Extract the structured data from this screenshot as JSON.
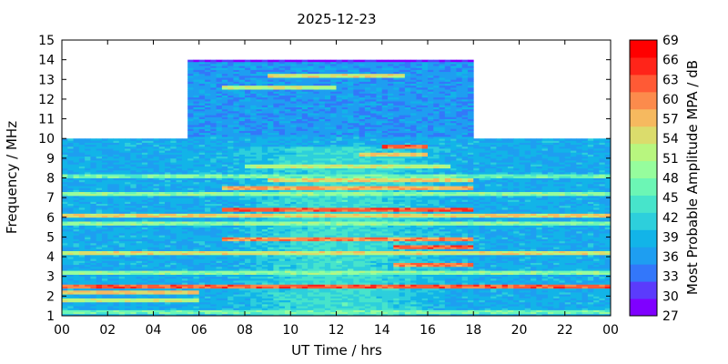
{
  "chart_data": {
    "type": "heatmap",
    "title": "2025-12-23",
    "xlabel": "UT Time / hrs",
    "ylabel": "Frequency / MHz",
    "xlim": [
      0,
      24
    ],
    "ylim": [
      1,
      15
    ],
    "x_ticks": [
      "00",
      "02",
      "04",
      "06",
      "08",
      "10",
      "12",
      "14",
      "16",
      "18",
      "20",
      "22",
      "00"
    ],
    "y_ticks": [
      "1",
      "2",
      "3",
      "4",
      "5",
      "6",
      "7",
      "8",
      "9",
      "10",
      "11",
      "12",
      "13",
      "14",
      "15"
    ],
    "colorbar": {
      "label": "Most Probable Amplitude MPA / dB",
      "min": 27,
      "max": 69,
      "ticks": [
        "27",
        "30",
        "33",
        "36",
        "39",
        "42",
        "45",
        "48",
        "51",
        "54",
        "57",
        "60",
        "63",
        "66",
        "69"
      ],
      "colors": [
        "#7f00ff",
        "#5b3bfc",
        "#3377fa",
        "#1e9ef1",
        "#12b4e8",
        "#2dcfdc",
        "#47e4cb",
        "#6cf6b5",
        "#96fd9d",
        "#b8f67f",
        "#dbdc6c",
        "#f6b95f",
        "#fc8b4c",
        "#ff5a35",
        "#ff2419",
        "#ff0000"
      ]
    },
    "coverage": [
      {
        "start_hr": 0.0,
        "end_hr": 5.5,
        "max_mhz": 10.0
      },
      {
        "start_hr": 5.5,
        "end_hr": 18.0,
        "max_mhz": 14.0
      },
      {
        "start_hr": 18.0,
        "end_hr": 24.0,
        "max_mhz": 10.0
      }
    ],
    "background_dB": 38,
    "bands": [
      {
        "f_mhz": 1.2,
        "start_hr": 0,
        "end_hr": 24,
        "dB": 47
      },
      {
        "f_mhz": 1.8,
        "start_hr": 0,
        "end_hr": 6,
        "dB": 52
      },
      {
        "f_mhz": 2.2,
        "start_hr": 0,
        "end_hr": 6,
        "dB": 56
      },
      {
        "f_mhz": 2.5,
        "start_hr": 0,
        "end_hr": 24,
        "dB": 62
      },
      {
        "f_mhz": 3.2,
        "start_hr": 0,
        "end_hr": 24,
        "dB": 49
      },
      {
        "f_mhz": 3.6,
        "start_hr": 14.5,
        "end_hr": 18,
        "dB": 60
      },
      {
        "f_mhz": 4.2,
        "start_hr": 0,
        "end_hr": 24,
        "dB": 54
      },
      {
        "f_mhz": 4.5,
        "start_hr": 14.5,
        "end_hr": 18,
        "dB": 62
      },
      {
        "f_mhz": 4.9,
        "start_hr": 7,
        "end_hr": 18,
        "dB": 60
      },
      {
        "f_mhz": 5.7,
        "start_hr": 0,
        "end_hr": 24,
        "dB": 49
      },
      {
        "f_mhz": 6.1,
        "start_hr": 0,
        "end_hr": 24,
        "dB": 55
      },
      {
        "f_mhz": 6.4,
        "start_hr": 7,
        "end_hr": 18,
        "dB": 63
      },
      {
        "f_mhz": 7.2,
        "start_hr": 0,
        "end_hr": 24,
        "dB": 49
      },
      {
        "f_mhz": 7.5,
        "start_hr": 7,
        "end_hr": 18,
        "dB": 58
      },
      {
        "f_mhz": 7.9,
        "start_hr": 9,
        "end_hr": 18,
        "dB": 55
      },
      {
        "f_mhz": 8.1,
        "start_hr": 0,
        "end_hr": 24,
        "dB": 47
      },
      {
        "f_mhz": 8.6,
        "start_hr": 8,
        "end_hr": 17,
        "dB": 52
      },
      {
        "f_mhz": 9.2,
        "start_hr": 13,
        "end_hr": 16,
        "dB": 56
      },
      {
        "f_mhz": 9.6,
        "start_hr": 14,
        "end_hr": 16,
        "dB": 62
      },
      {
        "f_mhz": 12.6,
        "start_hr": 7,
        "end_hr": 12,
        "dB": 52
      },
      {
        "f_mhz": 13.2,
        "start_hr": 9,
        "end_hr": 15,
        "dB": 54
      }
    ]
  }
}
